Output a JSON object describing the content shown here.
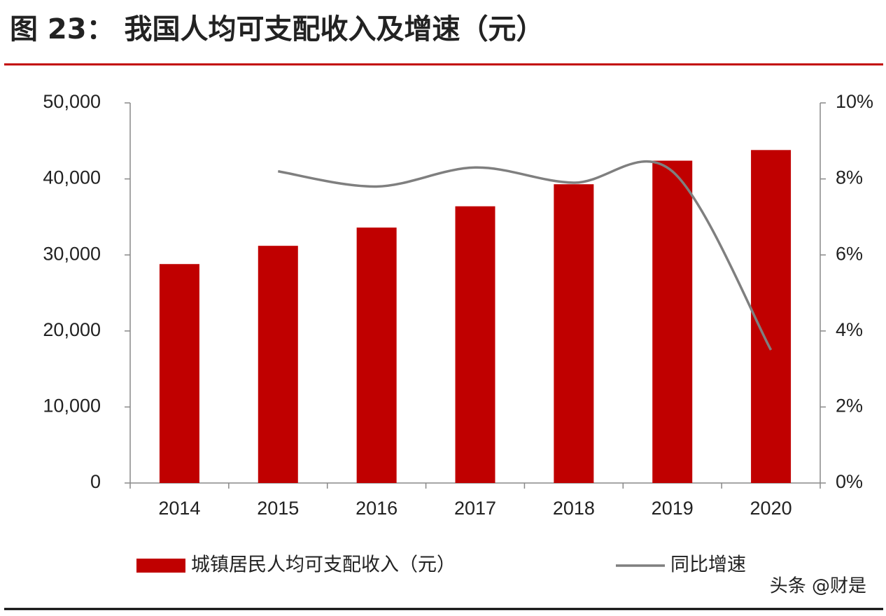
{
  "chart_data": {
    "type": "bar_line",
    "title": "图 23： 我国人均可支配收入及增速（元）",
    "categories": [
      "2014",
      "2015",
      "2016",
      "2017",
      "2018",
      "2019",
      "2020"
    ],
    "series": [
      {
        "name": "城镇居民人均可支配收入（元）",
        "type": "bar",
        "color": "#c00000",
        "values": [
          28800,
          31200,
          33600,
          36400,
          39300,
          42400,
          43800
        ]
      },
      {
        "name": "同比增速",
        "type": "line",
        "axis": "y2",
        "color": "#7f7f7f",
        "values": [
          null,
          8.2,
          7.8,
          8.3,
          7.9,
          8.2,
          3.5
        ]
      }
    ],
    "ylim": [
      0,
      50000
    ],
    "yticks": [
      0,
      {
        "value": 10000,
        "label": "10,000"
      },
      {
        "value": 20000,
        "label": "20,000"
      },
      {
        "value": 30000,
        "label": "30,000"
      },
      {
        "value": 40000,
        "label": "40,000"
      },
      {
        "value": 50000,
        "label": "50,000"
      }
    ],
    "y2lim": [
      0,
      10
    ],
    "y2ticks": [
      {
        "value": 0,
        "label": "0%"
      },
      {
        "value": 2,
        "label": "2%"
      },
      {
        "value": 4,
        "label": "4%"
      },
      {
        "value": 6,
        "label": "6%"
      },
      {
        "value": 8,
        "label": "8%"
      },
      {
        "value": 10,
        "label": "10%"
      }
    ],
    "grid": false,
    "legend": "bottom",
    "watermark": "头条 @财是"
  }
}
